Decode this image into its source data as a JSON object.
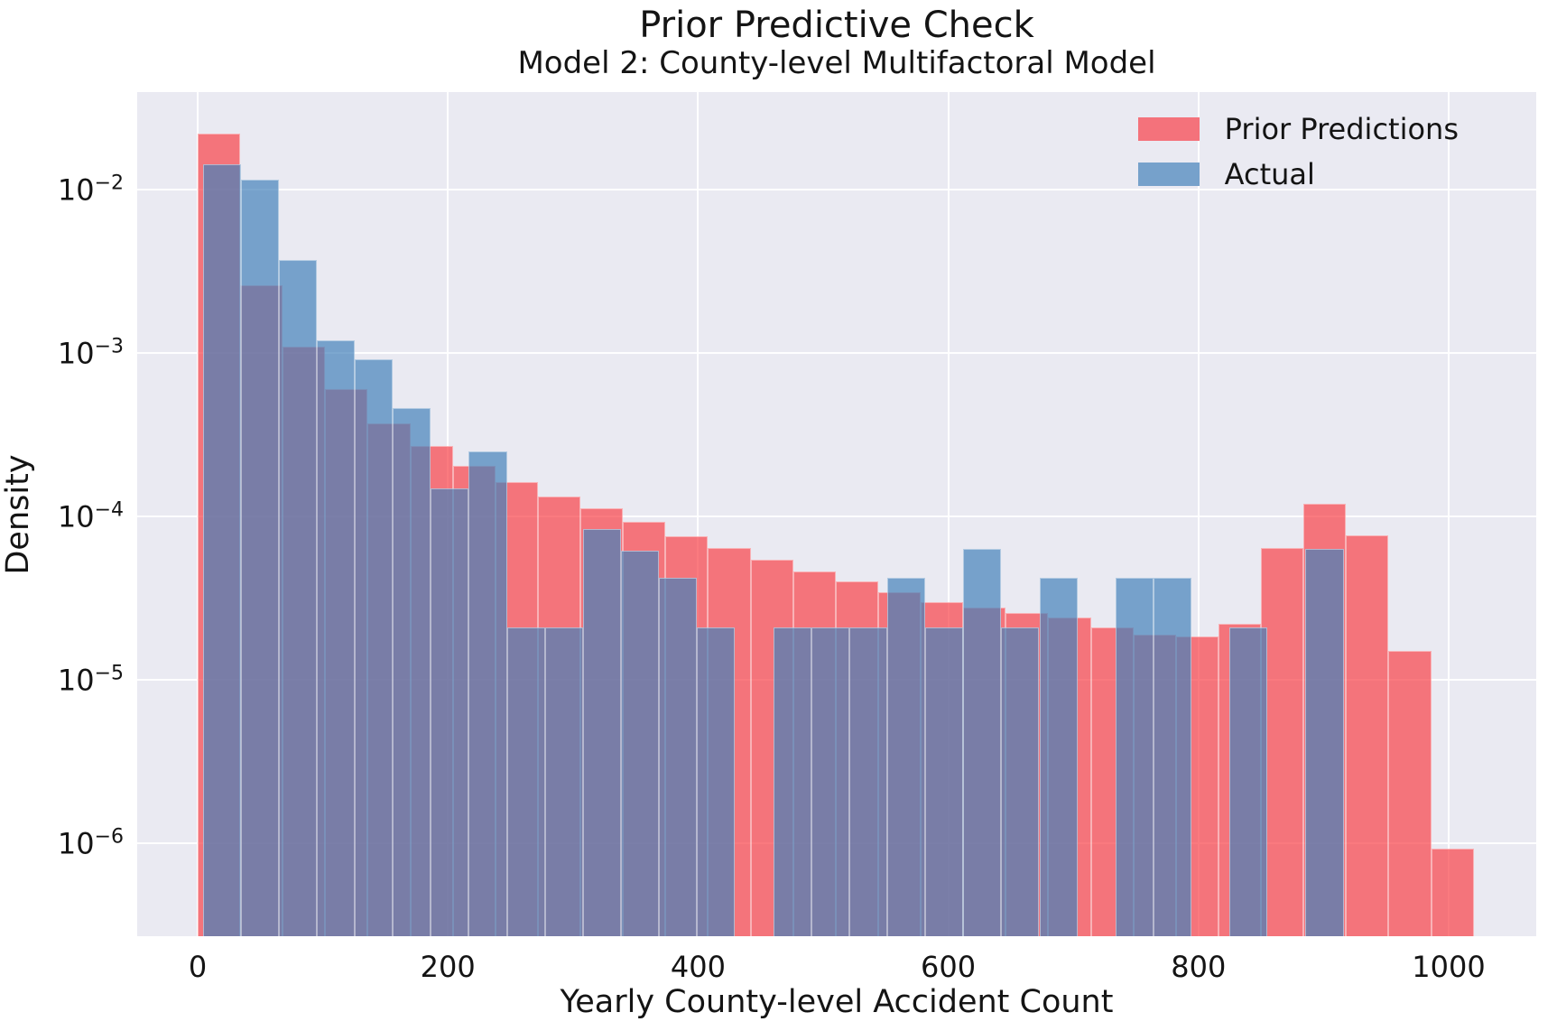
{
  "chart_data": {
    "type": "bar",
    "subtype": "overlapping-histograms-log-density",
    "title": "Prior Predictive Check",
    "subtitle": "Model 2: County-level Multifactoral Model",
    "xlabel": "Yearly County-level Accident Count",
    "ylabel": "Density",
    "yscale": "log",
    "grid": true,
    "background_color": "#eaeaf2",
    "xlim": [
      -48,
      1070
    ],
    "ylim": [
      2.7e-07,
      0.04
    ],
    "x_ticks": [
      0,
      200,
      400,
      600,
      800,
      1000
    ],
    "y_ticks": [
      {
        "base": "10",
        "exp": "−2",
        "value": 0.01
      },
      {
        "base": "10",
        "exp": "−3",
        "value": 0.001
      },
      {
        "base": "10",
        "exp": "−4",
        "value": 0.0001
      },
      {
        "base": "10",
        "exp": "−5",
        "value": 1e-05
      },
      {
        "base": "10",
        "exp": "−6",
        "value": 1e-06
      }
    ],
    "legend": {
      "position": "upper right",
      "entries": [
        {
          "label": "Prior Predictions",
          "color": "#f4727b"
        },
        {
          "label": "Actual",
          "color": "#76a1cb"
        }
      ]
    },
    "series": [
      {
        "name": "Prior Predictions",
        "color": "rgba(248,65,72,0.7)",
        "bin_start": 0,
        "bin_width": 34,
        "densities": [
          0.022,
          0.0026,
          0.0011,
          0.0006,
          0.00037,
          0.00027,
          0.000205,
          0.000163,
          0.000133,
          0.000112,
          9.3e-05,
          7.6e-05,
          6.4e-05,
          5.4e-05,
          4.6e-05,
          4e-05,
          3.45e-05,
          3e-05,
          2.75e-05,
          2.55e-05,
          2.4e-05,
          2.1e-05,
          1.9e-05,
          1.85e-05,
          2.2e-05,
          6.4e-05,
          0.00012,
          7.7e-05,
          1.5e-05,
          9.3e-07
        ]
      },
      {
        "name": "Actual",
        "color": "rgba(68,130,186,0.7)",
        "bin_start": 4,
        "bin_width": 30.4,
        "densities": [
          0.0143,
          0.0115,
          0.0037,
          0.0012,
          0.00092,
          0.00046,
          0.000148,
          0.00025,
          2.1e-05,
          2.1e-05,
          8.4e-05,
          6.2e-05,
          4.2e-05,
          2.1e-05,
          0,
          2.1e-05,
          2.1e-05,
          2.1e-05,
          4.2e-05,
          2.1e-05,
          6.3e-05,
          2.1e-05,
          4.2e-05,
          0,
          4.2e-05,
          4.2e-05,
          0,
          2.1e-05,
          0,
          6.3e-05
        ]
      }
    ]
  }
}
